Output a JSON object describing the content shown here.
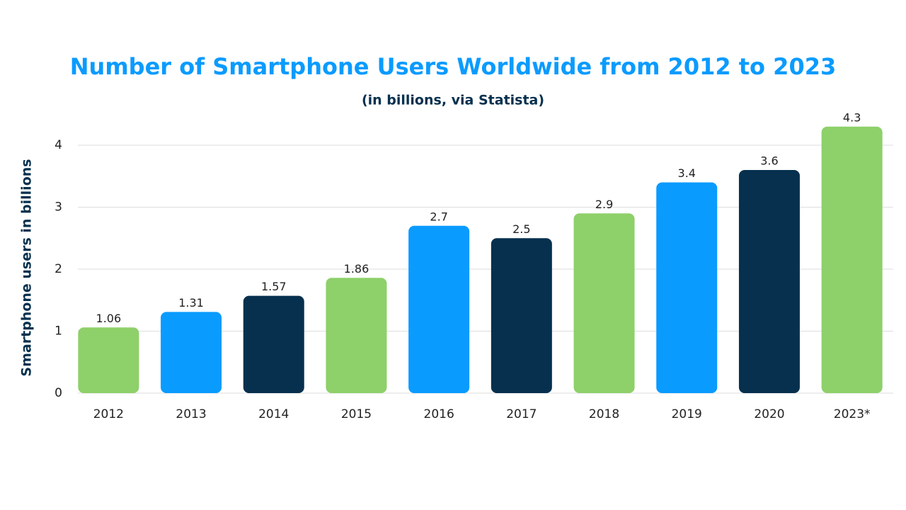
{
  "chart_data": {
    "type": "bar",
    "title": "Number of Smartphone Users Worldwide from 2012 to 2023",
    "subtitle": "(in billions, via Statista)",
    "y_label": "Smartphone users in billions",
    "categories": [
      "2012",
      "2013",
      "2014",
      "2015",
      "2016",
      "2017",
      "2018",
      "2019",
      "2020",
      "2023*"
    ],
    "values": [
      1.06,
      1.31,
      1.57,
      1.86,
      2.7,
      2.5,
      2.9,
      3.4,
      3.6,
      4.3
    ],
    "colors": [
      "#8ed06a",
      "#0a9bff",
      "#06304e",
      "#8ed06a",
      "#0a9bff",
      "#06304e",
      "#8ed06a",
      "#0a9bff",
      "#06304e",
      "#8ed06a"
    ],
    "ylim": [
      0,
      4.4
    ],
    "yticks": [
      0,
      1,
      2,
      3,
      4
    ],
    "grid": true
  }
}
